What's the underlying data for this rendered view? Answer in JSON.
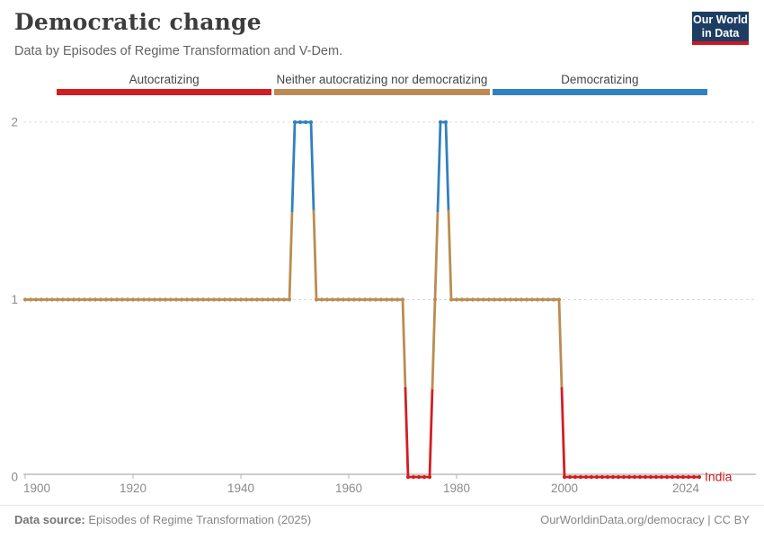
{
  "header": {
    "title": "Democratic change",
    "subtitle": "Data by Episodes of Regime Transformation and V-Dem."
  },
  "logo": {
    "line1": "Our World",
    "line2": "in Data"
  },
  "legend": {
    "items": [
      {
        "label": "Autocratizing",
        "color": "#d11e22"
      },
      {
        "label": "Neither autocratizing nor democratizing",
        "color": "#ba8c53"
      },
      {
        "label": "Democratizing",
        "color": "#3180bf"
      }
    ]
  },
  "chart_data": {
    "type": "line",
    "title": "Democratic change",
    "entity_label": "India",
    "xlabel": "",
    "ylabel": "",
    "grid": "dashed horizontal gridlines at y=1 and y=2",
    "x_axis": {
      "ticks": [
        1900,
        1920,
        1940,
        1960,
        1980,
        2000,
        2024
      ],
      "range": [
        1900,
        2025
      ]
    },
    "y_axis": {
      "ticks": [
        0,
        1,
        2
      ],
      "range": [
        0,
        2
      ]
    },
    "value_categories": {
      "0": "Autocratizing",
      "1": "Neither autocratizing nor democratizing",
      "2": "Democratizing"
    },
    "series": [
      {
        "name": "India",
        "color_by_value": {
          "0": "#d11e22",
          "1": "#ba8c53",
          "2": "#3180bf"
        },
        "segments": [
          {
            "start_year": 1900,
            "end_year": 1949,
            "value": 1
          },
          {
            "start_year": 1950,
            "end_year": 1953,
            "value": 2
          },
          {
            "start_year": 1954,
            "end_year": 1970,
            "value": 1
          },
          {
            "start_year": 1971,
            "end_year": 1975,
            "value": 0
          },
          {
            "start_year": 1976,
            "end_year": 1976,
            "value": 1
          },
          {
            "start_year": 1977,
            "end_year": 1978,
            "value": 2
          },
          {
            "start_year": 1979,
            "end_year": 1999,
            "value": 1
          },
          {
            "start_year": 2000,
            "end_year": 2025,
            "value": 0
          }
        ]
      }
    ]
  },
  "footer": {
    "datasource_label": "Data source:",
    "datasource_value": " Episodes of Regime Transformation (2025)",
    "link": "OurWorldinData.org/democracy",
    "license": " | CC BY"
  }
}
